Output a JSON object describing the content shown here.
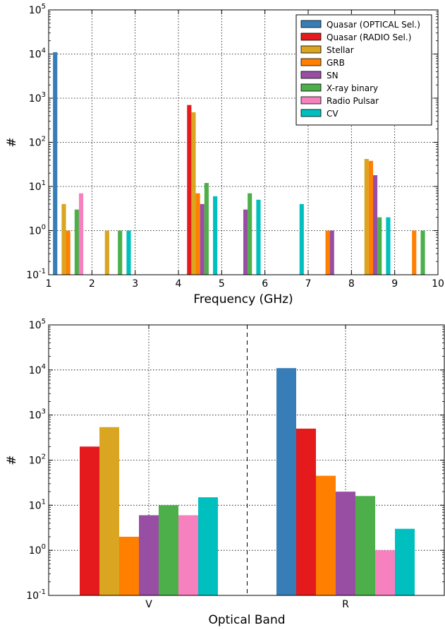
{
  "chart_data": [
    {
      "type": "bar",
      "yscale": "log",
      "xlabel": "Frequency (GHz)",
      "ylabel": "#",
      "xlim": [
        1,
        10
      ],
      "ylim": [
        0.1,
        100000
      ],
      "x_ticks": [
        "1",
        "2",
        "3",
        "4",
        "5",
        "6",
        "7",
        "8",
        "9",
        "10"
      ],
      "grid": true,
      "legend_position": "top-right",
      "series": [
        {
          "name": "Quasar (OPTICAL Sel.)",
          "color": "#377eb8",
          "points": [
            {
              "x": 1.15,
              "y": 11000
            }
          ]
        },
        {
          "name": "Quasar (RADIO Sel.)",
          "color": "#e41a1c",
          "points": [
            {
              "x": 4.25,
              "y": 700
            }
          ]
        },
        {
          "name": "Stellar",
          "color": "#daa520",
          "points": [
            {
              "x": 1.35,
              "y": 4
            },
            {
              "x": 2.35,
              "y": 1
            },
            {
              "x": 4.35,
              "y": 480
            },
            {
              "x": 8.35,
              "y": 42
            }
          ]
        },
        {
          "name": "GRB",
          "color": "#ff7f00",
          "points": [
            {
              "x": 1.45,
              "y": 1
            },
            {
              "x": 4.45,
              "y": 7
            },
            {
              "x": 7.45,
              "y": 1
            },
            {
              "x": 8.45,
              "y": 38
            },
            {
              "x": 9.45,
              "y": 1
            }
          ]
        },
        {
          "name": "SN",
          "color": "#984ea3",
          "points": [
            {
              "x": 4.55,
              "y": 4
            },
            {
              "x": 5.55,
              "y": 3
            },
            {
              "x": 7.55,
              "y": 1
            },
            {
              "x": 8.55,
              "y": 18
            }
          ]
        },
        {
          "name": "X-ray binary",
          "color": "#4daf4a",
          "points": [
            {
              "x": 1.65,
              "y": 3
            },
            {
              "x": 2.65,
              "y": 1
            },
            {
              "x": 4.65,
              "y": 12
            },
            {
              "x": 5.65,
              "y": 7
            },
            {
              "x": 8.65,
              "y": 2
            },
            {
              "x": 9.65,
              "y": 1
            }
          ]
        },
        {
          "name": "Radio Pulsar",
          "color": "#f781bf",
          "points": [
            {
              "x": 1.75,
              "y": 7
            }
          ]
        },
        {
          "name": "CV",
          "color": "#00bfbf",
          "points": [
            {
              "x": 2.85,
              "y": 1
            },
            {
              "x": 4.85,
              "y": 6
            },
            {
              "x": 5.85,
              "y": 5
            },
            {
              "x": 6.85,
              "y": 4
            },
            {
              "x": 8.85,
              "y": 2
            }
          ]
        }
      ]
    },
    {
      "type": "bar",
      "yscale": "log",
      "xlabel": "Optical Band",
      "ylabel": "#",
      "categories": [
        "V",
        "R"
      ],
      "ylim": [
        0.1,
        100000
      ],
      "grid": true,
      "separator": "dashed",
      "groups": [
        {
          "category": "V",
          "bars": [
            {
              "series": "Quasar (RADIO Sel.)",
              "color": "#e41a1c",
              "value": 200
            },
            {
              "series": "Stellar",
              "color": "#daa520",
              "value": 540
            },
            {
              "series": "GRB",
              "color": "#ff7f00",
              "value": 2
            },
            {
              "series": "SN",
              "color": "#984ea3",
              "value": 6
            },
            {
              "series": "X-ray binary",
              "color": "#4daf4a",
              "value": 10
            },
            {
              "series": "Radio Pulsar",
              "color": "#f781bf",
              "value": 6
            },
            {
              "series": "CV",
              "color": "#00bfbf",
              "value": 15
            }
          ]
        },
        {
          "category": "R",
          "bars": [
            {
              "series": "Quasar (OPTICAL Sel.)",
              "color": "#377eb8",
              "value": 11000
            },
            {
              "series": "Quasar (RADIO Sel.)",
              "color": "#e41a1c",
              "value": 500
            },
            {
              "series": "GRB",
              "color": "#ff7f00",
              "value": 45
            },
            {
              "series": "SN",
              "color": "#984ea3",
              "value": 20
            },
            {
              "series": "X-ray binary",
              "color": "#4daf4a",
              "value": 16
            },
            {
              "series": "Radio Pulsar",
              "color": "#f781bf",
              "value": 1
            },
            {
              "series": "CV",
              "color": "#00bfbf",
              "value": 3
            }
          ]
        }
      ]
    }
  ]
}
